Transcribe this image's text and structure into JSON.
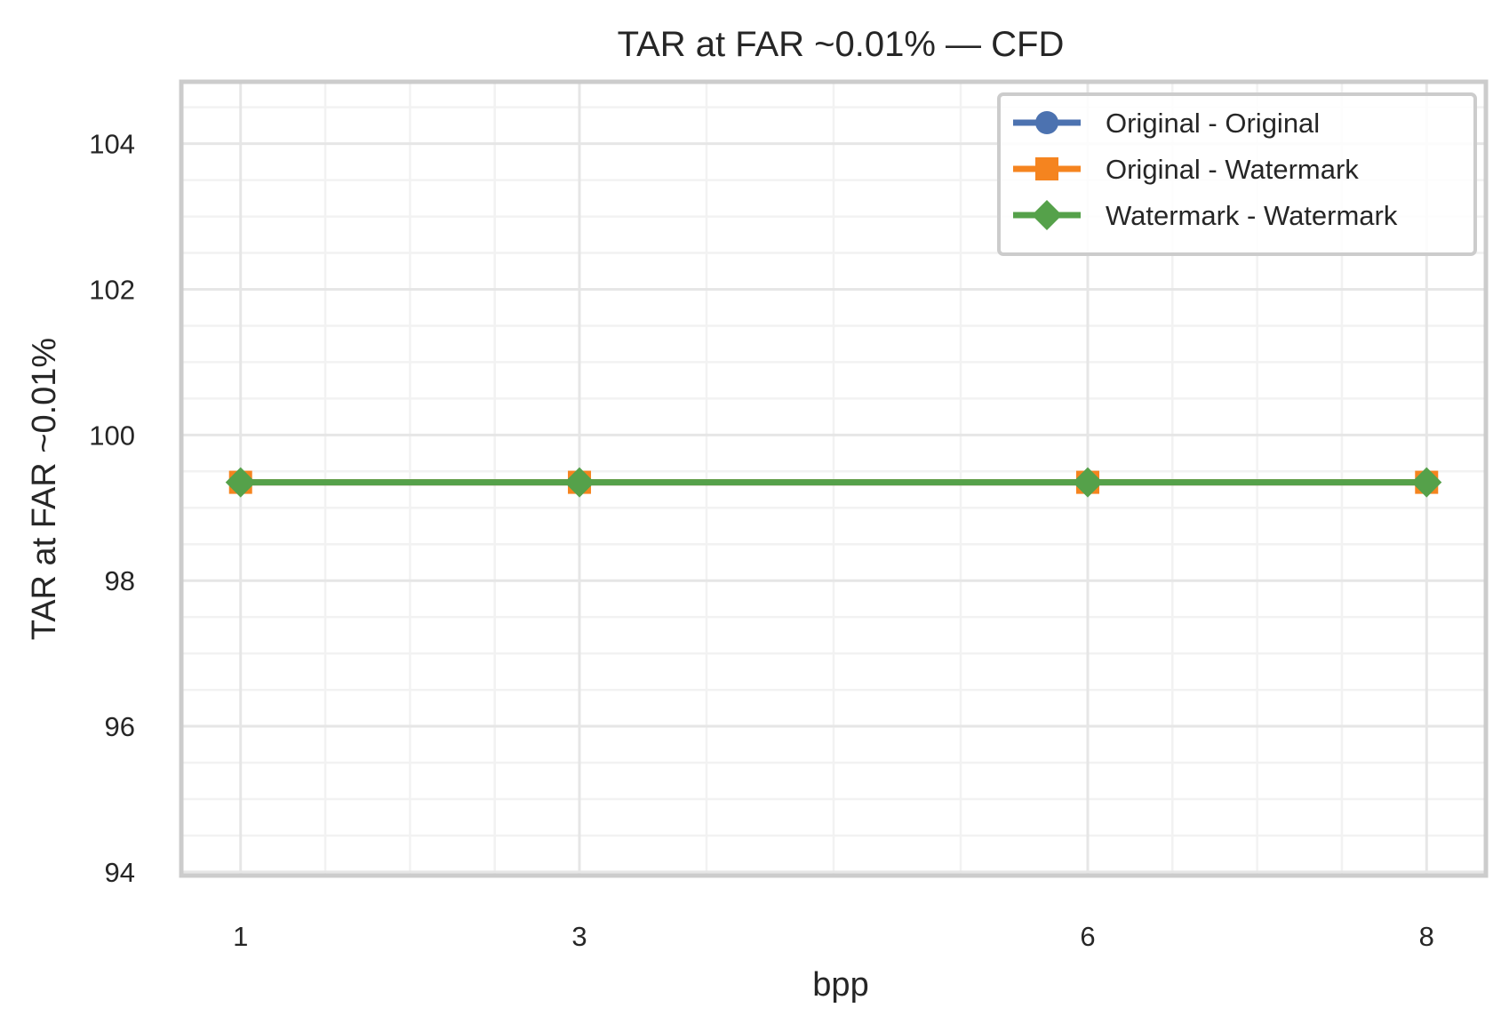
{
  "chart_data": {
    "type": "line",
    "title": "TAR at FAR ~0.01% — CFD",
    "xlabel": "bpp",
    "ylabel": "TAR at FAR ~0.01%",
    "x": [
      1,
      3,
      6,
      8
    ],
    "x_ticks": [
      1,
      3,
      6,
      8
    ],
    "y_ticks": [
      94,
      96,
      98,
      100,
      102,
      104
    ],
    "xlim": [
      0.65,
      8.35
    ],
    "ylim": [
      93.95,
      104.85
    ],
    "grid": true,
    "minor_grid": true,
    "legend_position": "top-right",
    "series": [
      {
        "name": "Original - Original",
        "marker": "circle",
        "color": "#4c72b0",
        "values": [
          99.35,
          99.35,
          99.35,
          99.35
        ]
      },
      {
        "name": "Original - Watermark",
        "marker": "square",
        "color": "#f5841f",
        "values": [
          99.35,
          99.35,
          99.35,
          99.35
        ]
      },
      {
        "name": "Watermark - Watermark",
        "marker": "diamond",
        "color": "#55a14a",
        "values": [
          99.35,
          99.35,
          99.35,
          99.35
        ]
      }
    ]
  },
  "colors": {
    "frame": "#cccccc",
    "grid_major": "#e6e6e6",
    "grid_minor": "#f2f2f2",
    "text": "#262626"
  }
}
